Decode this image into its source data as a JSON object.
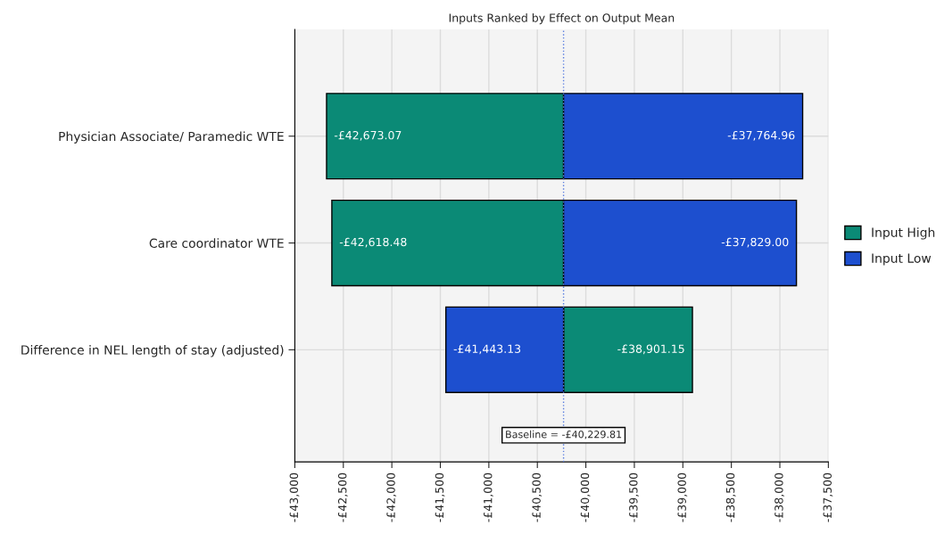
{
  "chart_data": {
    "type": "bar",
    "orientation": "horizontal",
    "title": "Inputs Ranked by Effect on Output Mean",
    "categories": [
      "Physician Associate/ Paramedic WTE",
      "Care coordinator WTE",
      "Difference in NEL length of stay (adjusted)"
    ],
    "series": [
      {
        "name": "Input High",
        "color": "#0b8a76",
        "base": [
          -40229.81,
          -40229.81,
          -40229.81
        ],
        "values": [
          -2443.26,
          -2388.67,
          1328.66
        ],
        "value_labels": [
          "-£42,673.07",
          "-£42,618.48",
          "-£38,901.15"
        ]
      },
      {
        "name": "Input Low",
        "color": "#1d4fcf",
        "base": [
          -40229.81,
          -40229.81,
          -40229.81
        ],
        "values": [
          2464.85,
          2400.81,
          -1213.32
        ],
        "value_labels": [
          "-£37,764.96",
          "-£37,829.00",
          "-£41,443.13"
        ]
      }
    ],
    "xlim": [
      -43000,
      -37500
    ],
    "xticks": [
      {
        "value": -43000,
        "label": "-£43,000"
      },
      {
        "value": -42500,
        "label": "-£42,500"
      },
      {
        "value": -42000,
        "label": "-£42,000"
      },
      {
        "value": -41500,
        "label": "-£41,500"
      },
      {
        "value": -41000,
        "label": "-£41,000"
      },
      {
        "value": -40500,
        "label": "-£40,500"
      },
      {
        "value": -40000,
        "label": "-£40,000"
      },
      {
        "value": -39500,
        "label": "-£39,500"
      },
      {
        "value": -39000,
        "label": "-£39,000"
      },
      {
        "value": -38500,
        "label": "-£38,500"
      },
      {
        "value": -38000,
        "label": "-£38,000"
      },
      {
        "value": -37500,
        "label": "-£37,500"
      }
    ],
    "ref_lines": [
      {
        "axis": "x",
        "value": -40229.81,
        "label": "Baseline = -£40,229.81",
        "color": "#5b7fe0",
        "line_style": "dotted"
      }
    ],
    "grid": true,
    "legend": "right"
  }
}
